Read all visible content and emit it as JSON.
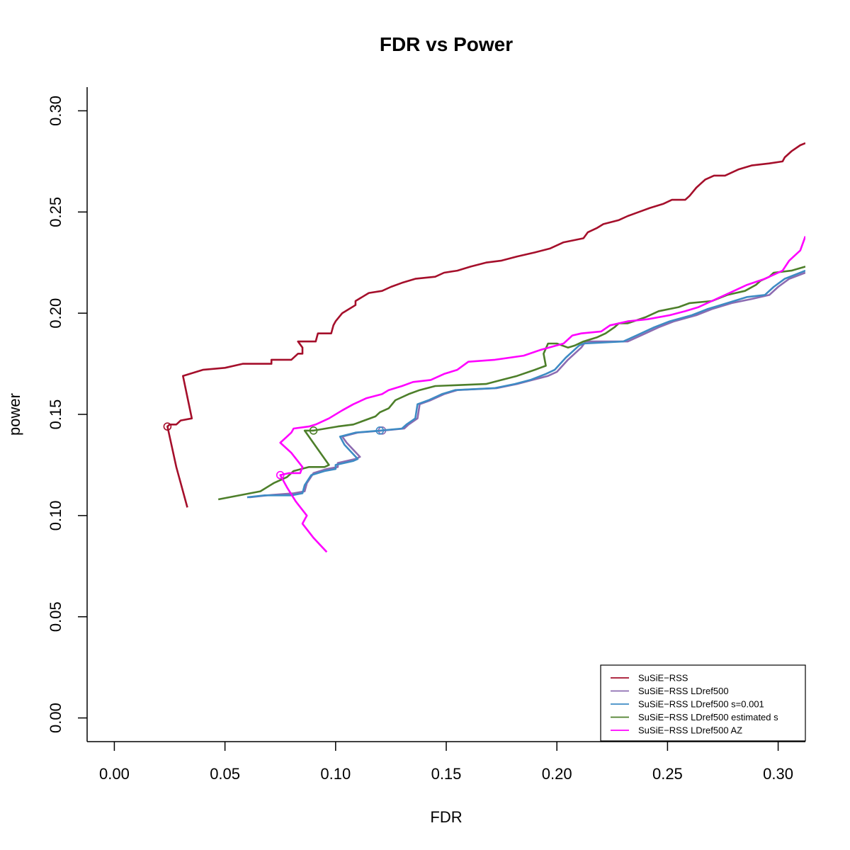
{
  "chart_data": {
    "type": "line",
    "title": "FDR vs Power",
    "xlabel": "FDR",
    "ylabel": "power",
    "xlim": [
      -0.0123,
      0.3123
    ],
    "ylim": [
      -0.0117,
      0.3117
    ],
    "x_ticks": [
      "0.00",
      "0.05",
      "0.10",
      "0.15",
      "0.20",
      "0.25",
      "0.30"
    ],
    "y_ticks": [
      "0.00",
      "0.05",
      "0.10",
      "0.15",
      "0.20",
      "0.25",
      "0.30"
    ],
    "grid": false,
    "legend_position": "bottom-right",
    "series": [
      {
        "name": "SuSiE−RSS",
        "color": "#a50f2b",
        "marker": {
          "x": 0.024,
          "y": 0.144
        },
        "points": [
          [
            0.033,
            0.104
          ],
          [
            0.028,
            0.124
          ],
          [
            0.024,
            0.144
          ],
          [
            0.025,
            0.145
          ],
          [
            0.028,
            0.145
          ],
          [
            0.03,
            0.147
          ],
          [
            0.035,
            0.148
          ],
          [
            0.031,
            0.169
          ],
          [
            0.04,
            0.172
          ],
          [
            0.05,
            0.173
          ],
          [
            0.058,
            0.175
          ],
          [
            0.071,
            0.175
          ],
          [
            0.071,
            0.177
          ],
          [
            0.08,
            0.177
          ],
          [
            0.083,
            0.18
          ],
          [
            0.085,
            0.18
          ],
          [
            0.085,
            0.183
          ],
          [
            0.083,
            0.186
          ],
          [
            0.085,
            0.186
          ],
          [
            0.091,
            0.186
          ],
          [
            0.092,
            0.19
          ],
          [
            0.098,
            0.19
          ],
          [
            0.099,
            0.194
          ],
          [
            0.1,
            0.196
          ],
          [
            0.103,
            0.2
          ],
          [
            0.106,
            0.202
          ],
          [
            0.109,
            0.204
          ],
          [
            0.109,
            0.206
          ],
          [
            0.112,
            0.208
          ],
          [
            0.115,
            0.21
          ],
          [
            0.121,
            0.211
          ],
          [
            0.125,
            0.213
          ],
          [
            0.13,
            0.215
          ],
          [
            0.136,
            0.217
          ],
          [
            0.145,
            0.218
          ],
          [
            0.149,
            0.22
          ],
          [
            0.155,
            0.221
          ],
          [
            0.161,
            0.223
          ],
          [
            0.168,
            0.225
          ],
          [
            0.175,
            0.226
          ],
          [
            0.182,
            0.228
          ],
          [
            0.19,
            0.23
          ],
          [
            0.197,
            0.232
          ],
          [
            0.203,
            0.235
          ],
          [
            0.212,
            0.237
          ],
          [
            0.214,
            0.24
          ],
          [
            0.218,
            0.242
          ],
          [
            0.221,
            0.244
          ],
          [
            0.228,
            0.246
          ],
          [
            0.232,
            0.248
          ],
          [
            0.237,
            0.25
          ],
          [
            0.242,
            0.252
          ],
          [
            0.248,
            0.254
          ],
          [
            0.252,
            0.256
          ],
          [
            0.258,
            0.256
          ],
          [
            0.26,
            0.258
          ],
          [
            0.263,
            0.262
          ],
          [
            0.265,
            0.264
          ],
          [
            0.267,
            0.266
          ],
          [
            0.271,
            0.268
          ],
          [
            0.276,
            0.268
          ],
          [
            0.282,
            0.271
          ],
          [
            0.288,
            0.273
          ],
          [
            0.296,
            0.274
          ],
          [
            0.302,
            0.275
          ],
          [
            0.303,
            0.277
          ],
          [
            0.306,
            0.28
          ],
          [
            0.31,
            0.283
          ],
          [
            0.3123,
            0.284
          ]
        ]
      },
      {
        "name": "SuSiE−RSS LDref500",
        "color": "#8c6bb1",
        "marker": {
          "x": 0.121,
          "y": 0.142
        },
        "points": [
          [
            0.061,
            0.109
          ],
          [
            0.069,
            0.11
          ],
          [
            0.081,
            0.111
          ],
          [
            0.086,
            0.112
          ],
          [
            0.087,
            0.116
          ],
          [
            0.09,
            0.121
          ],
          [
            0.096,
            0.123
          ],
          [
            0.101,
            0.124
          ],
          [
            0.101,
            0.126
          ],
          [
            0.109,
            0.128
          ],
          [
            0.111,
            0.129
          ],
          [
            0.105,
            0.136
          ],
          [
            0.103,
            0.139
          ],
          [
            0.11,
            0.141
          ],
          [
            0.121,
            0.142
          ],
          [
            0.131,
            0.143
          ],
          [
            0.133,
            0.145
          ],
          [
            0.137,
            0.148
          ],
          [
            0.138,
            0.155
          ],
          [
            0.143,
            0.157
          ],
          [
            0.149,
            0.16
          ],
          [
            0.155,
            0.162
          ],
          [
            0.173,
            0.163
          ],
          [
            0.182,
            0.165
          ],
          [
            0.189,
            0.167
          ],
          [
            0.196,
            0.169
          ],
          [
            0.2,
            0.171
          ],
          [
            0.205,
            0.177
          ],
          [
            0.208,
            0.18
          ],
          [
            0.211,
            0.183
          ],
          [
            0.213,
            0.186
          ],
          [
            0.232,
            0.186
          ],
          [
            0.238,
            0.189
          ],
          [
            0.246,
            0.193
          ],
          [
            0.253,
            0.196
          ],
          [
            0.263,
            0.199
          ],
          [
            0.27,
            0.202
          ],
          [
            0.279,
            0.205
          ],
          [
            0.288,
            0.207
          ],
          [
            0.296,
            0.209
          ],
          [
            0.3,
            0.213
          ],
          [
            0.305,
            0.217
          ],
          [
            0.3123,
            0.22
          ]
        ]
      },
      {
        "name": "SuSiE−RSS LDref500 s=0.001",
        "color": "#3e8bc4",
        "marker": {
          "x": 0.12,
          "y": 0.142
        },
        "points": [
          [
            0.06,
            0.109
          ],
          [
            0.068,
            0.11
          ],
          [
            0.08,
            0.11
          ],
          [
            0.085,
            0.111
          ],
          [
            0.086,
            0.115
          ],
          [
            0.089,
            0.12
          ],
          [
            0.095,
            0.122
          ],
          [
            0.1,
            0.123
          ],
          [
            0.1,
            0.125
          ],
          [
            0.108,
            0.127
          ],
          [
            0.11,
            0.128
          ],
          [
            0.104,
            0.135
          ],
          [
            0.102,
            0.139
          ],
          [
            0.109,
            0.141
          ],
          [
            0.12,
            0.142
          ],
          [
            0.13,
            0.143
          ],
          [
            0.132,
            0.145
          ],
          [
            0.136,
            0.148
          ],
          [
            0.137,
            0.155
          ],
          [
            0.142,
            0.157
          ],
          [
            0.148,
            0.16
          ],
          [
            0.154,
            0.162
          ],
          [
            0.172,
            0.163
          ],
          [
            0.181,
            0.165
          ],
          [
            0.188,
            0.167
          ],
          [
            0.195,
            0.17
          ],
          [
            0.199,
            0.172
          ],
          [
            0.204,
            0.178
          ],
          [
            0.207,
            0.181
          ],
          [
            0.21,
            0.184
          ],
          [
            0.212,
            0.185
          ],
          [
            0.23,
            0.186
          ],
          [
            0.236,
            0.189
          ],
          [
            0.244,
            0.193
          ],
          [
            0.251,
            0.196
          ],
          [
            0.261,
            0.199
          ],
          [
            0.268,
            0.202
          ],
          [
            0.277,
            0.205
          ],
          [
            0.286,
            0.208
          ],
          [
            0.294,
            0.209
          ],
          [
            0.298,
            0.213
          ],
          [
            0.303,
            0.217
          ],
          [
            0.3123,
            0.221
          ]
        ]
      },
      {
        "name": "SuSiE−RSS LDref500 estimated s",
        "color": "#4d7f2a",
        "marker": {
          "x": 0.09,
          "y": 0.142
        },
        "points": [
          [
            0.047,
            0.108
          ],
          [
            0.066,
            0.112
          ],
          [
            0.072,
            0.116
          ],
          [
            0.078,
            0.119
          ],
          [
            0.081,
            0.122
          ],
          [
            0.088,
            0.124
          ],
          [
            0.095,
            0.124
          ],
          [
            0.097,
            0.125
          ],
          [
            0.086,
            0.142
          ],
          [
            0.09,
            0.142
          ],
          [
            0.101,
            0.144
          ],
          [
            0.108,
            0.145
          ],
          [
            0.118,
            0.149
          ],
          [
            0.12,
            0.151
          ],
          [
            0.124,
            0.153
          ],
          [
            0.127,
            0.157
          ],
          [
            0.133,
            0.16
          ],
          [
            0.138,
            0.162
          ],
          [
            0.145,
            0.164
          ],
          [
            0.168,
            0.165
          ],
          [
            0.175,
            0.167
          ],
          [
            0.182,
            0.169
          ],
          [
            0.19,
            0.172
          ],
          [
            0.195,
            0.174
          ],
          [
            0.194,
            0.18
          ],
          [
            0.196,
            0.185
          ],
          [
            0.2,
            0.185
          ],
          [
            0.205,
            0.183
          ],
          [
            0.208,
            0.184
          ],
          [
            0.212,
            0.186
          ],
          [
            0.218,
            0.188
          ],
          [
            0.222,
            0.19
          ],
          [
            0.226,
            0.193
          ],
          [
            0.228,
            0.195
          ],
          [
            0.232,
            0.195
          ],
          [
            0.24,
            0.198
          ],
          [
            0.246,
            0.201
          ],
          [
            0.255,
            0.203
          ],
          [
            0.26,
            0.205
          ],
          [
            0.27,
            0.206
          ],
          [
            0.277,
            0.209
          ],
          [
            0.285,
            0.211
          ],
          [
            0.29,
            0.214
          ],
          [
            0.292,
            0.216
          ],
          [
            0.296,
            0.218
          ],
          [
            0.298,
            0.22
          ],
          [
            0.306,
            0.221
          ],
          [
            0.3123,
            0.223
          ]
        ]
      },
      {
        "name": "SuSiE−RSS LDref500 AZ",
        "color": "#ff00ff",
        "marker": {
          "x": 0.075,
          "y": 0.12
        },
        "points": [
          [
            0.096,
            0.082
          ],
          [
            0.09,
            0.089
          ],
          [
            0.085,
            0.096
          ],
          [
            0.087,
            0.1
          ],
          [
            0.082,
            0.107
          ],
          [
            0.078,
            0.114
          ],
          [
            0.075,
            0.12
          ],
          [
            0.079,
            0.121
          ],
          [
            0.084,
            0.121
          ],
          [
            0.085,
            0.124
          ],
          [
            0.08,
            0.131
          ],
          [
            0.075,
            0.136
          ],
          [
            0.078,
            0.139
          ],
          [
            0.08,
            0.141
          ],
          [
            0.081,
            0.143
          ],
          [
            0.088,
            0.144
          ],
          [
            0.091,
            0.145
          ],
          [
            0.097,
            0.148
          ],
          [
            0.103,
            0.152
          ],
          [
            0.108,
            0.155
          ],
          [
            0.114,
            0.158
          ],
          [
            0.121,
            0.16
          ],
          [
            0.124,
            0.162
          ],
          [
            0.13,
            0.164
          ],
          [
            0.135,
            0.166
          ],
          [
            0.143,
            0.167
          ],
          [
            0.149,
            0.17
          ],
          [
            0.155,
            0.172
          ],
          [
            0.16,
            0.176
          ],
          [
            0.172,
            0.177
          ],
          [
            0.185,
            0.179
          ],
          [
            0.193,
            0.182
          ],
          [
            0.203,
            0.185
          ],
          [
            0.207,
            0.189
          ],
          [
            0.211,
            0.19
          ],
          [
            0.22,
            0.191
          ],
          [
            0.224,
            0.194
          ],
          [
            0.232,
            0.196
          ],
          [
            0.241,
            0.197
          ],
          [
            0.251,
            0.199
          ],
          [
            0.258,
            0.201
          ],
          [
            0.264,
            0.203
          ],
          [
            0.27,
            0.206
          ],
          [
            0.278,
            0.21
          ],
          [
            0.286,
            0.214
          ],
          [
            0.294,
            0.217
          ],
          [
            0.302,
            0.221
          ],
          [
            0.305,
            0.226
          ],
          [
            0.31,
            0.231
          ],
          [
            0.3123,
            0.238
          ]
        ]
      }
    ]
  }
}
